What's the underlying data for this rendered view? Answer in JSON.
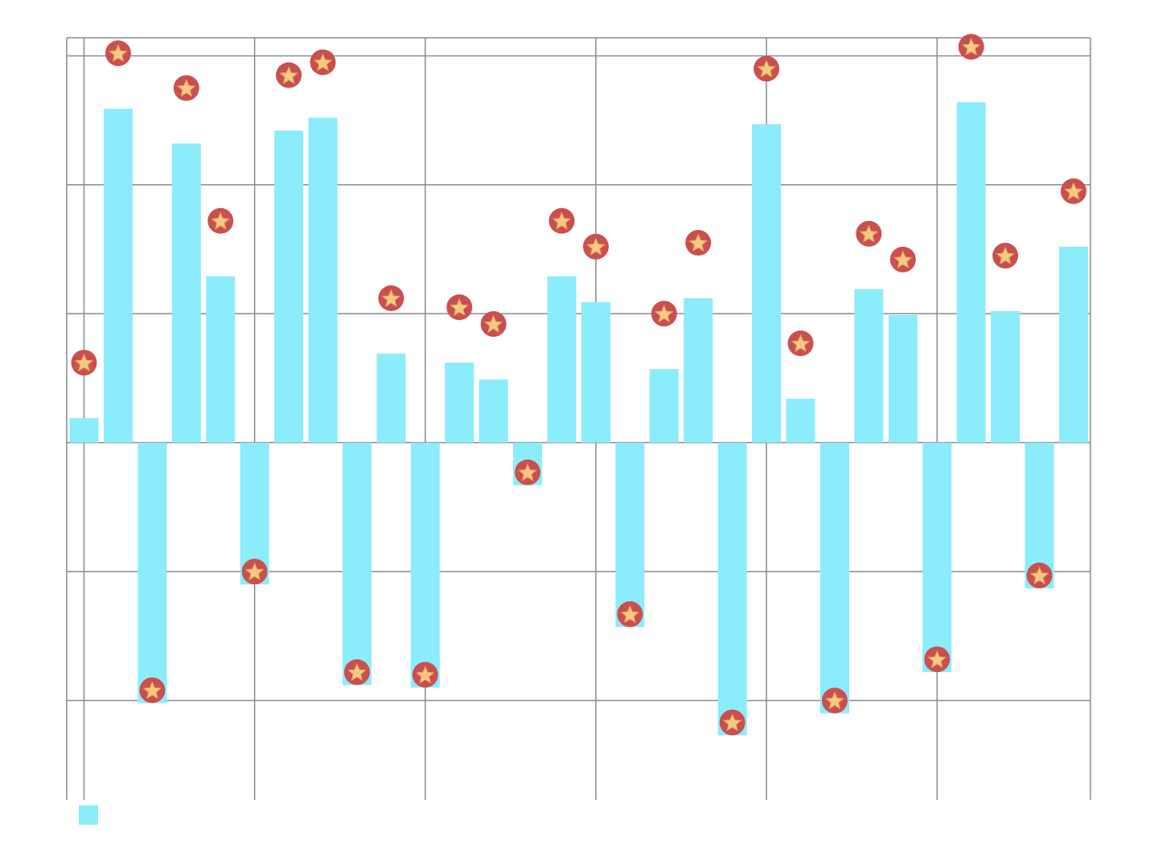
{
  "chart_data": {
    "type": "bar",
    "categories": [
      null,
      null,
      null,
      null,
      null,
      null,
      null,
      null,
      null,
      null,
      null,
      null,
      null,
      null,
      null,
      null,
      null,
      null,
      null,
      null,
      null,
      null,
      null,
      null,
      null,
      null,
      null,
      null,
      null,
      null
    ],
    "values": [
      0.19,
      2.59,
      -2.02,
      2.32,
      1.29,
      -1.1,
      2.42,
      2.52,
      -1.88,
      0.69,
      -1.9,
      0.62,
      0.49,
      -0.33,
      1.29,
      1.09,
      -1.43,
      0.57,
      1.12,
      -2.27,
      2.47,
      0.34,
      -2.1,
      1.19,
      0.99,
      -1.78,
      2.64,
      1.02,
      -1.13,
      1.52
    ],
    "color": "#8becfc",
    "marker_color": "#c9504f",
    "ylim": [
      -2.77,
      3.14
    ],
    "yticks": [
      -2,
      -1,
      0,
      1,
      2,
      3
    ],
    "grid": true
  }
}
